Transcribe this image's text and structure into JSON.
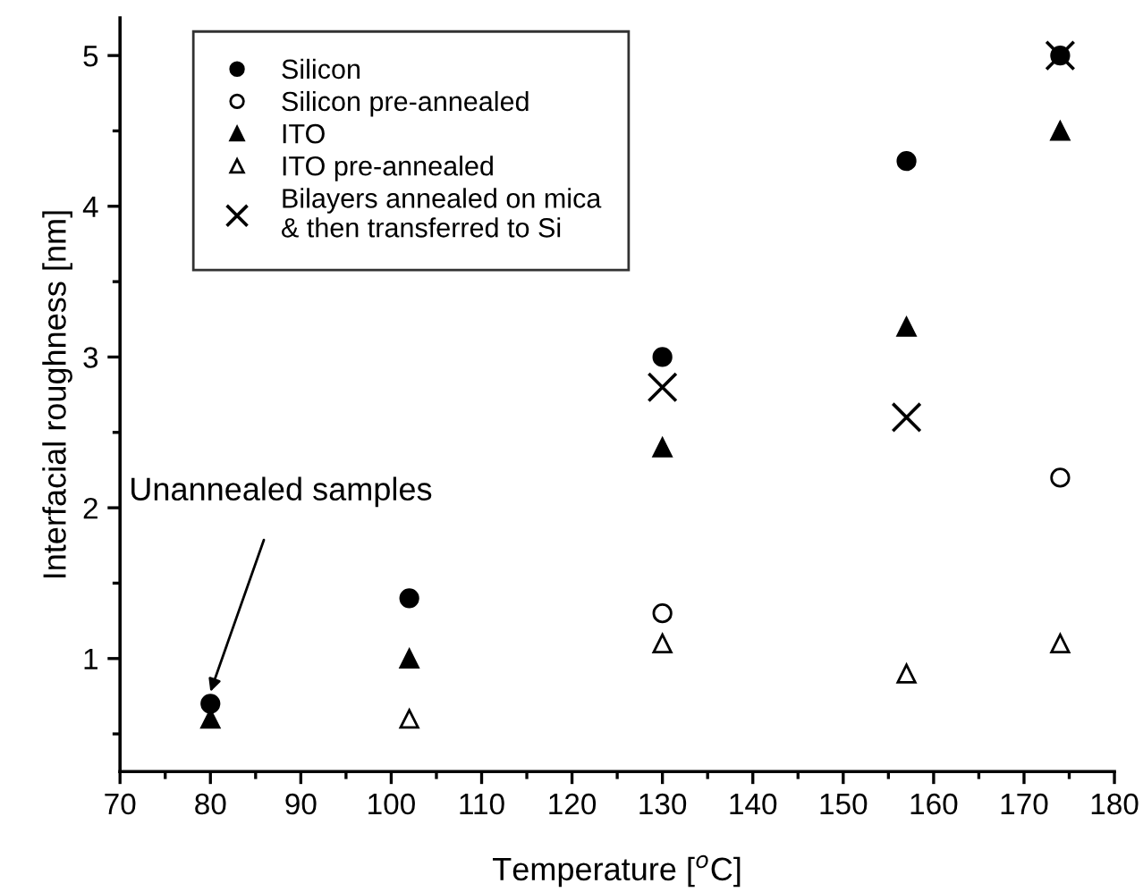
{
  "chart_data": {
    "type": "scatter",
    "xlabel": "Temperature [$^{o}$C]",
    "ylabel": "Interfacial roughness [nm]",
    "xlim": [
      70,
      180
    ],
    "xticks": [
      70,
      80,
      90,
      100,
      110,
      120,
      130,
      140,
      150,
      160,
      170,
      180
    ],
    "ylim": [
      0.25,
      5.25
    ],
    "yticks": [
      1,
      2,
      3,
      4,
      5
    ],
    "grid": false,
    "legend": "top left",
    "annotations": [
      {
        "text": "Unannealed samples",
        "x": 80,
        "y": 0.78
      }
    ],
    "series": [
      {
        "name": "Silicon",
        "color": "#000000",
        "marker": "circle",
        "x": [
          80,
          102,
          130,
          157,
          174
        ],
        "values": [
          0.7,
          1.4,
          3.0,
          4.3,
          5.0
        ]
      },
      {
        "name": "Silicon pre-annealed",
        "color": "#000000",
        "marker": "circle",
        "x": [
          130,
          174
        ],
        "values": [
          1.3,
          2.2
        ]
      },
      {
        "name": "ITO",
        "color": "#000000",
        "marker": "triangle",
        "x": [
          80,
          102,
          130,
          157,
          174
        ],
        "values": [
          0.6,
          1.0,
          2.4,
          3.2,
          4.5
        ]
      },
      {
        "name": "ITO pre-annealed",
        "color": "#000000",
        "marker": "triangle",
        "x": [
          102,
          130,
          157,
          174
        ],
        "values": [
          0.6,
          1.1,
          0.9,
          1.1
        ]
      },
      {
        "name": "Bilayers annealed on mica\n& then transferred to Si",
        "color": "#000000",
        "marker": "cross",
        "x": [
          130,
          157,
          174
        ],
        "values": [
          2.8,
          2.6,
          5.0
        ]
      }
    ]
  }
}
